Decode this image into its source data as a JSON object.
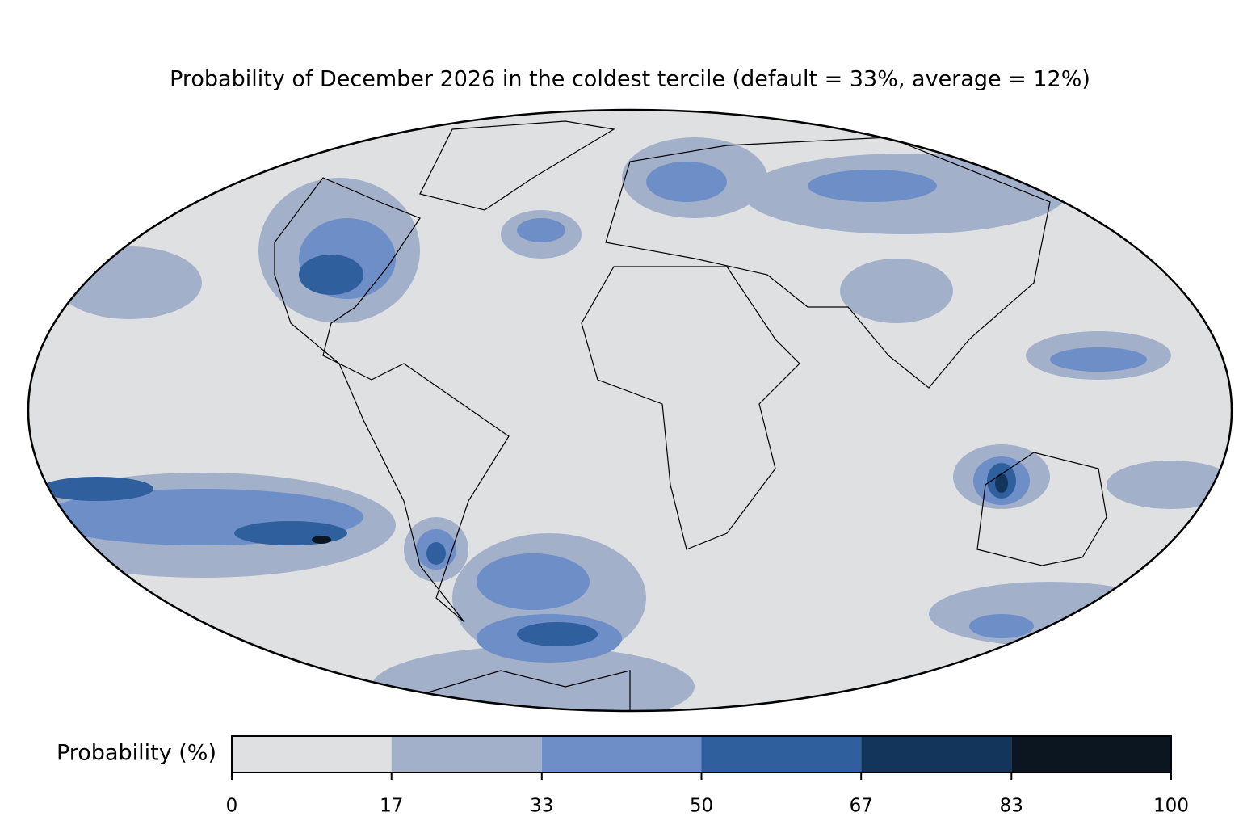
{
  "title": "Probability of December 2026 in the coldest tercile (default = 33%, average = 12%)",
  "colorbar": {
    "label": "Probability (%)",
    "lim": [
      0,
      100
    ],
    "ticks": [
      0,
      17,
      33,
      50,
      67,
      83,
      100
    ],
    "colors": [
      "#dfe0e2",
      "#a2b0ca",
      "#6e8ec8",
      "#2f5f9d",
      "#13345b",
      "#0c1620"
    ]
  }
}
